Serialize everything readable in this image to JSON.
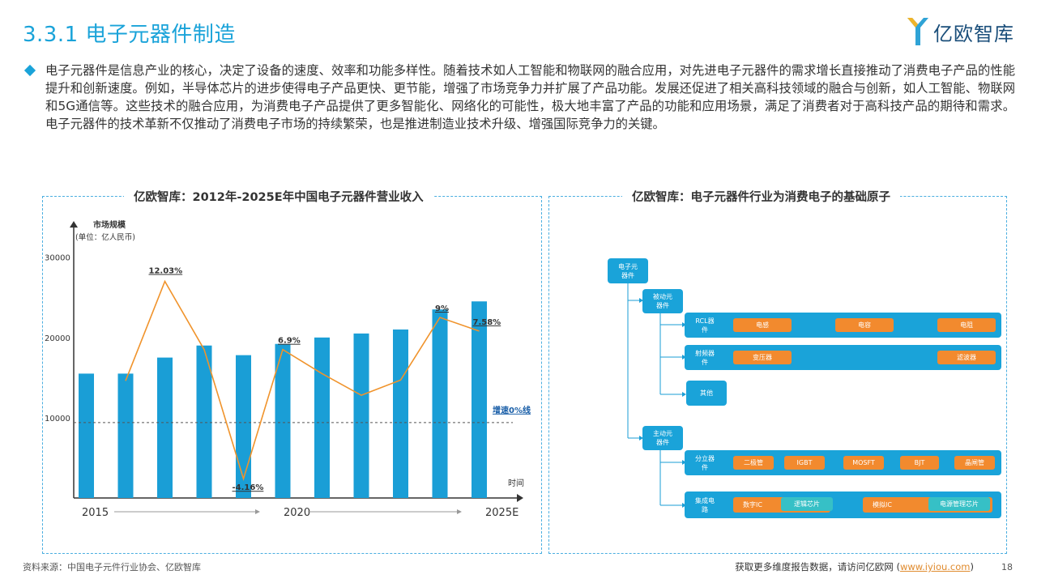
{
  "header": {
    "title": "3.3.1 电子元器件制造",
    "logo_text": "亿欧智库"
  },
  "intro": {
    "text": "电子元器件是信息产业的核心，决定了设备的速度、效率和功能多样性。随着技术如人工智能和物联网的融合应用，对先进电子元器件的需求增长直接推动了消费电子产品的性能提升和创新速度。例如，半导体芯片的进步使得电子产品更快、更节能，增强了市场竞争力并扩展了产品功能。发展还促进了相关高科技领域的融合与创新，如人工智能、物联网和5G通信等。这些技术的融合应用，为消费电子产品提供了更多智能化、网络化的可能性，极大地丰富了产品的功能和应用场景，满足了消费者对于高科技产品的期待和需求。电子元器件的技术革新不仅推动了消费电子市场的持续繁荣，也是推进制造业技术升级、增强国际竞争力的关键。"
  },
  "left_panel": {
    "title": "亿欧智库：2012年-2025E年中国电子元器件营业收入"
  },
  "right_panel": {
    "title": "亿欧智库：电子元器件行业为消费电子的基础原子",
    "root": "电子元\n器件",
    "passive": "被动元\n器件",
    "active": "主动元\n器件",
    "rcl": "RCL器\n件",
    "rcl_items": [
      "电感",
      "电容",
      "电阻"
    ],
    "rf": "射频器\n件",
    "rf_items": [
      "变压器",
      "滤波器"
    ],
    "other": "其他",
    "discrete": "分立器\n件",
    "discrete_items": [
      "二极管",
      "IGBT",
      "MOSFT",
      "BJT",
      "晶闸管"
    ],
    "ic": "集成电\n路",
    "ic_items": [
      "数字IC",
      "逻辑芯片",
      "模拟IC",
      "电源管理芯片"
    ]
  },
  "chart_data": {
    "type": "bar",
    "ylabel": "市场规模",
    "yunit": "(单位：亿人民币)",
    "xlabel": "时间",
    "yticks": [
      10000,
      20000,
      30000
    ],
    "ylim": [
      0,
      33000
    ],
    "x_labels": [
      "2015",
      "2020",
      "2025E"
    ],
    "bar_values": [
      15500,
      15500,
      17500,
      19000,
      17800,
      19200,
      20000,
      20500,
      21000,
      23500,
      24500
    ],
    "growth_series": {
      "name": "增速",
      "values": [
        14600,
        27000,
        18500,
        2400,
        18500,
        15500,
        12800,
        14700,
        22500,
        20800
      ],
      "labels": [
        {
          "index": 1,
          "text": "12.03%"
        },
        {
          "index": 3,
          "text": "-4.16%"
        },
        {
          "index": 4,
          "text": "6.9%"
        },
        {
          "index": 8,
          "text": "9%"
        },
        {
          "index": 9,
          "text": "7.58%"
        }
      ]
    },
    "zero_line_value": 9400,
    "zero_line_label": "增速0%线",
    "colors": {
      "bar": "#1a9ed6",
      "line": "#f0932b"
    }
  },
  "footer": {
    "source": "资料来源：中国电子元件行业协会、亿欧智库",
    "cta": "获取更多维度报告数据，请访问亿欧网 (",
    "link": "www.iyiou.com",
    "cta_end": ")",
    "page": "18"
  }
}
